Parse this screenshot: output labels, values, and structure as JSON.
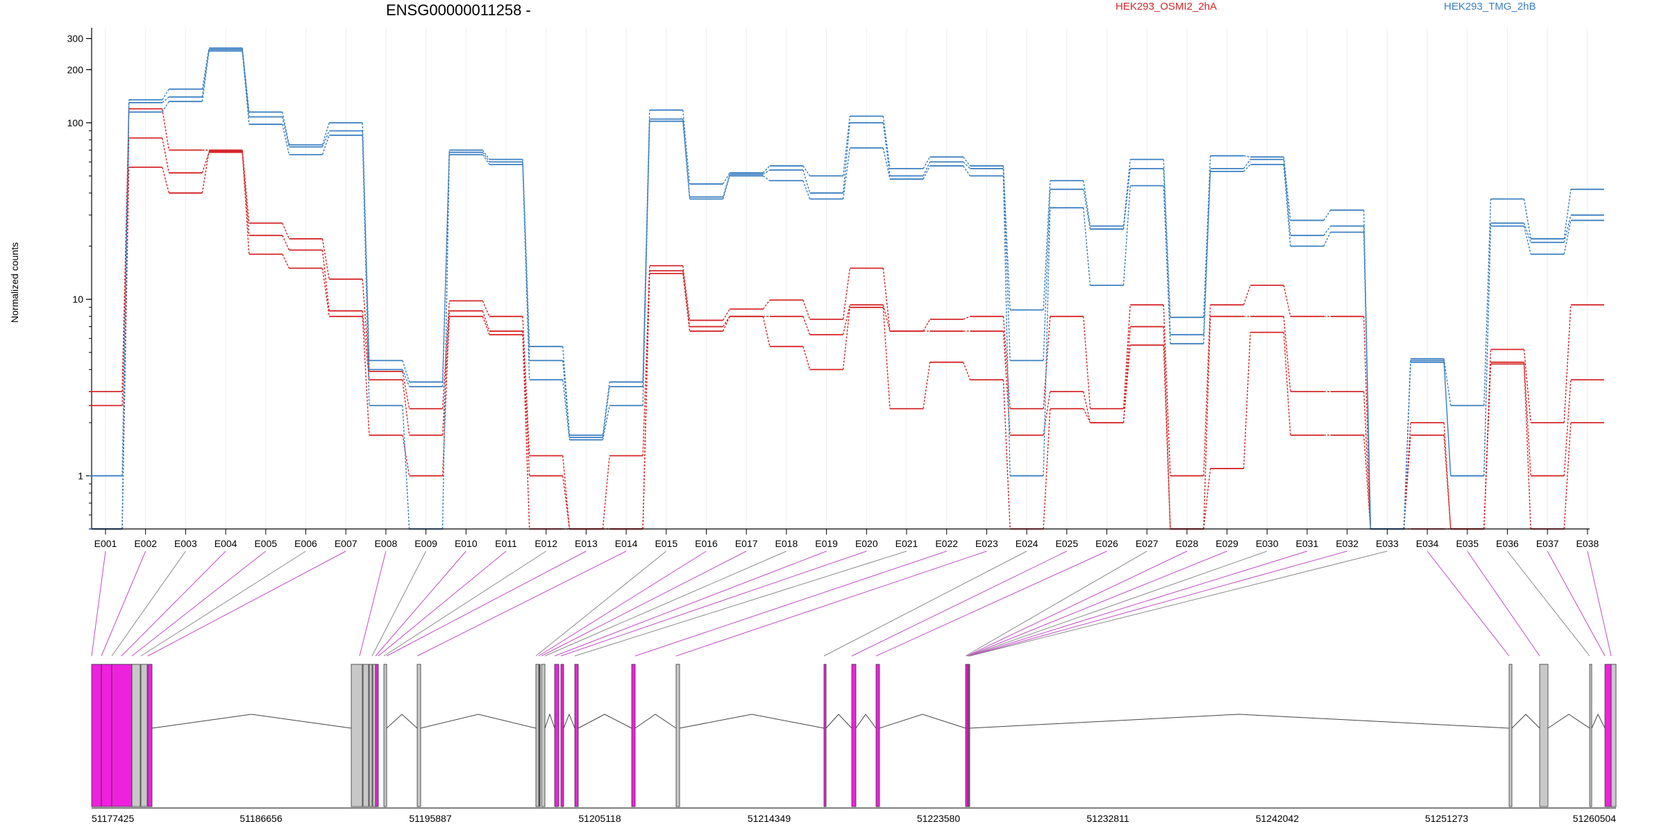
{
  "chart_data": {
    "type": "line",
    "title": "ENSG00000011258 -",
    "ylabel": "Normalized counts",
    "yscale": "log",
    "ylim": [
      0.5,
      330
    ],
    "yticks": [
      1,
      10,
      100,
      200,
      300
    ],
    "grid": "vertical",
    "legend_placement": "top",
    "categories": [
      "E001",
      "E002",
      "E003",
      "E004",
      "E005",
      "E006",
      "E007",
      "E008",
      "E009",
      "E010",
      "E011",
      "E012",
      "E013",
      "E014",
      "E015",
      "E016",
      "E017",
      "E018",
      "E019",
      "E020",
      "E021",
      "E022",
      "E023",
      "E024",
      "E025",
      "E026",
      "E027",
      "E028",
      "E029",
      "E030",
      "E031",
      "E032",
      "E033",
      "E034",
      "E035",
      "E036",
      "E037",
      "E038"
    ],
    "colors": {
      "HEK293_OSMI2_2hA": "#d62728",
      "HEK293_TMG_2hB": "#3a7fc1",
      "exon_highlight": "#ee22dd",
      "exon_plain": "#c8c8c8"
    },
    "series": [
      {
        "name": "HEK293_OSMI2_2hA",
        "group": "HEK293_OSMI2_2hA",
        "values": [
          3.0,
          120,
          70,
          70,
          27,
          22,
          13,
          3.9,
          2.4,
          9.8,
          8.0,
          1.3,
          0.5,
          1.3,
          15.5,
          7.6,
          8.8,
          9.9,
          7.7,
          15.0,
          6.6,
          7.7,
          8.0,
          2.4,
          8.0,
          2.4,
          9.3,
          1.0,
          9.3,
          12.0,
          8.0,
          8.0,
          0.5,
          2.0,
          0.5,
          5.2,
          2.0,
          9.3
        ]
      },
      {
        "name": "",
        "group": "HEK293_OSMI2_2hA",
        "values": [
          2.5,
          82,
          52,
          68,
          23,
          19,
          8.6,
          3.5,
          1.7,
          8.6,
          6.6,
          1.0,
          0.5,
          0.5,
          14.5,
          7.0,
          8.0,
          8.0,
          6.3,
          9.3,
          6.6,
          6.6,
          6.6,
          1.7,
          3.0,
          2.0,
          7.0,
          0.5,
          8.0,
          8.0,
          3.0,
          3.0,
          0.5,
          1.7,
          0.5,
          4.4,
          1.0,
          3.5
        ]
      },
      {
        "name": "",
        "group": "HEK293_OSMI2_2hA",
        "values": [
          0.5,
          56,
          40,
          69,
          18,
          15,
          8.0,
          1.7,
          1.0,
          8.0,
          6.3,
          0.5,
          0.5,
          0.5,
          14.0,
          6.6,
          8.0,
          5.4,
          4.0,
          9.0,
          2.4,
          4.4,
          3.5,
          0.5,
          2.4,
          2.0,
          5.5,
          0.5,
          1.1,
          6.5,
          1.7,
          1.7,
          0.5,
          0.5,
          0.5,
          4.3,
          0.5,
          2.0
        ]
      },
      {
        "name": "HEK293_TMG_2hB",
        "group": "HEK293_TMG_2hB",
        "values": [
          1.0,
          135,
          155,
          265,
          115,
          75,
          100,
          4.5,
          3.4,
          70,
          62,
          5.4,
          1.7,
          3.4,
          118,
          45,
          52,
          57,
          50,
          109,
          55,
          64,
          57,
          8.7,
          47,
          26,
          62,
          7.9,
          65,
          64,
          28,
          32,
          0.5,
          4.6,
          2.5,
          37,
          22,
          42
        ]
      },
      {
        "name": "",
        "group": "HEK293_TMG_2hB",
        "values": [
          0.5,
          130,
          140,
          260,
          108,
          73,
          90,
          4.0,
          3.2,
          68,
          60,
          4.5,
          1.65,
          3.2,
          105,
          38,
          51,
          54,
          40,
          100,
          50,
          60,
          55,
          4.5,
          42,
          25,
          55,
          6.3,
          55,
          62,
          23,
          26,
          0.5,
          4.5,
          1.0,
          27,
          21,
          30
        ]
      },
      {
        "name": "",
        "group": "HEK293_TMG_2hB",
        "values": [
          0.5,
          115,
          132,
          255,
          98,
          66,
          85,
          2.5,
          0.5,
          66,
          58,
          3.5,
          1.6,
          2.5,
          102,
          37,
          50,
          47,
          37,
          72,
          48,
          57,
          50,
          1.0,
          33,
          12,
          44,
          5.6,
          53,
          58,
          20,
          24,
          0.5,
          4.4,
          1.0,
          26,
          18,
          28
        ]
      }
    ]
  },
  "gene_model": {
    "coordinates": [
      "51177425",
      "51186656",
      "51195887",
      "51205118",
      "51214349",
      "51223580",
      "51232811",
      "51242042",
      "51251273",
      "51260504"
    ]
  }
}
